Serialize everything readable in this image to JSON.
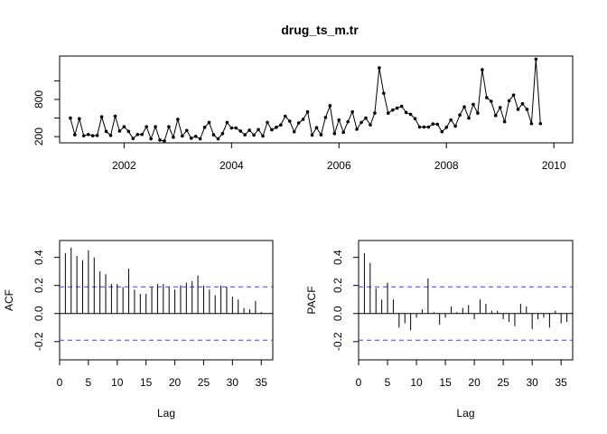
{
  "chart_data": [
    {
      "type": "line",
      "title": "drug_ts_m.tr",
      "xlabel": "",
      "ylabel": "",
      "xlim": [
        2000.8,
        2010.35
      ],
      "ylim": [
        100,
        1500
      ],
      "x_ticks": [
        2002,
        2004,
        2006,
        2008,
        2010
      ],
      "y_ticks": [
        200,
        800
      ],
      "y_tick_labels": [
        "200",
        "800"
      ],
      "points_shown": true,
      "series": [
        {
          "x_start": 2001.0,
          "x_step": 0.08333,
          "values": [
            500,
            230,
            490,
            215,
            235,
            215,
            220,
            520,
            285,
            220,
            530,
            290,
            360,
            285,
            170,
            235,
            235,
            360,
            165,
            360,
            145,
            130,
            360,
            190,
            480,
            210,
            300,
            175,
            205,
            165,
            350,
            430,
            230,
            165,
            250,
            430,
            340,
            340,
            290,
            230,
            305,
            225,
            315,
            210,
            430,
            310,
            350,
            390,
            530,
            450,
            280,
            420,
            480,
            600,
            225,
            345,
            230,
            510,
            700,
            250,
            470,
            270,
            440,
            600,
            320,
            430,
            500,
            390,
            580,
            1310,
            900,
            580,
            630,
            660,
            690,
            590,
            560,
            490,
            355,
            355,
            355,
            405,
            400,
            280,
            350,
            470,
            370,
            550,
            680,
            500,
            720,
            580,
            1280,
            830,
            770,
            540,
            670,
            440,
            780,
            870,
            640,
            730,
            640,
            410,
            1450,
            410
          ]
        }
      ]
    },
    {
      "type": "bar",
      "title": "",
      "xlabel": "Lag",
      "ylabel": "ACF",
      "xlim": [
        0,
        37
      ],
      "ylim": [
        -0.33,
        0.52
      ],
      "x_ticks": [
        0,
        5,
        10,
        15,
        20,
        25,
        30,
        35
      ],
      "y_ticks": [
        -0.2,
        0,
        0.2,
        0.4
      ],
      "y_tick_labels": [
        "-0.2",
        "0.0",
        "0.2",
        "0.4"
      ],
      "confidence_band": 0.19,
      "lags": [
        1,
        2,
        3,
        4,
        5,
        6,
        7,
        8,
        9,
        10,
        11,
        12,
        13,
        14,
        15,
        16,
        17,
        18,
        19,
        20,
        21,
        22,
        23,
        24,
        25,
        26,
        27,
        28,
        29,
        30,
        31,
        32,
        33,
        34,
        35,
        36
      ],
      "values": [
        0.43,
        0.47,
        0.41,
        0.38,
        0.45,
        0.4,
        0.3,
        0.28,
        0.21,
        0.21,
        0.19,
        0.32,
        0.17,
        0.14,
        0.14,
        0.19,
        0.21,
        0.21,
        0.19,
        0.17,
        0.2,
        0.22,
        0.23,
        0.27,
        0.2,
        0.17,
        0.13,
        0.2,
        0.19,
        0.12,
        0.1,
        0.04,
        0.03,
        0.09,
        0.01,
        0.0
      ]
    },
    {
      "type": "bar",
      "title": "",
      "xlabel": "Lag",
      "ylabel": "PACF",
      "xlim": [
        0,
        37
      ],
      "ylim": [
        -0.33,
        0.52
      ],
      "x_ticks": [
        0,
        5,
        10,
        15,
        20,
        25,
        30,
        35
      ],
      "y_ticks": [
        -0.2,
        0,
        0.2,
        0.4
      ],
      "y_tick_labels": [
        "-0.2",
        "0.0",
        "0.2",
        "0.4"
      ],
      "confidence_band": 0.19,
      "lags": [
        1,
        2,
        3,
        4,
        5,
        6,
        7,
        8,
        9,
        10,
        11,
        12,
        13,
        14,
        15,
        16,
        17,
        18,
        19,
        20,
        21,
        22,
        23,
        24,
        25,
        26,
        27,
        28,
        29,
        30,
        31,
        32,
        33,
        34,
        35,
        36
      ],
      "values": [
        0.43,
        0.36,
        0.18,
        0.1,
        0.22,
        0.1,
        -0.1,
        -0.07,
        -0.12,
        -0.03,
        0.03,
        0.25,
        0.01,
        -0.08,
        -0.03,
        0.05,
        0.01,
        0.04,
        0.06,
        -0.04,
        0.1,
        0.07,
        0.02,
        0.02,
        -0.04,
        -0.06,
        -0.09,
        0.07,
        0.05,
        -0.11,
        -0.04,
        -0.03,
        -0.1,
        0.02,
        -0.07,
        -0.06
      ]
    }
  ],
  "colors": {
    "line": "#000000",
    "band": "#3b3bff"
  }
}
